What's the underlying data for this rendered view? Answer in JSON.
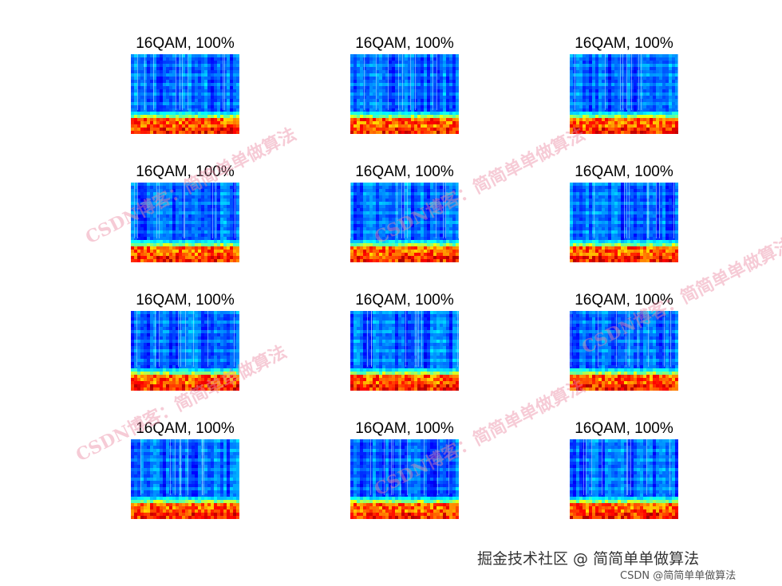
{
  "chart_data": {
    "type": "heatmap",
    "layout": {
      "rows": 4,
      "cols": 3
    },
    "colormap": "jet",
    "axes_visible": false,
    "panels": [
      {
        "title": "16QAM, 100%"
      },
      {
        "title": "16QAM, 100%"
      },
      {
        "title": "16QAM, 100%"
      },
      {
        "title": "16QAM, 100%"
      },
      {
        "title": "16QAM, 100%"
      },
      {
        "title": "16QAM, 100%"
      },
      {
        "title": "16QAM, 100%"
      },
      {
        "title": "16QAM, 100%"
      },
      {
        "title": "16QAM, 100%"
      },
      {
        "title": "16QAM, 100%"
      },
      {
        "title": "16QAM, 100%"
      },
      {
        "title": "16QAM, 100%"
      }
    ]
  },
  "watermarks": [
    "CSDN博客：简简单单做算法",
    "CSDN博客：简简单单做算法",
    "CSDN博客：简简单单做算法",
    "CSDN博客：简简单单做算法",
    "CSDN博客：简简单单做算法"
  ],
  "footer": {
    "credit": "掘金技术社区 @ 简简单单做算法",
    "source": "CSDN @简简单单做算法"
  }
}
